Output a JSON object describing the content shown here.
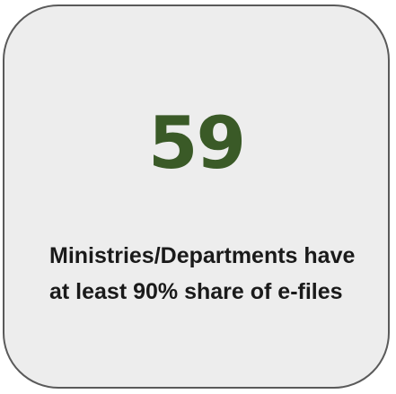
{
  "stat_card": {
    "value": "59",
    "caption": "Ministries/Departments have at least 90% share of e-files",
    "accent_color": "#3a5a27"
  }
}
